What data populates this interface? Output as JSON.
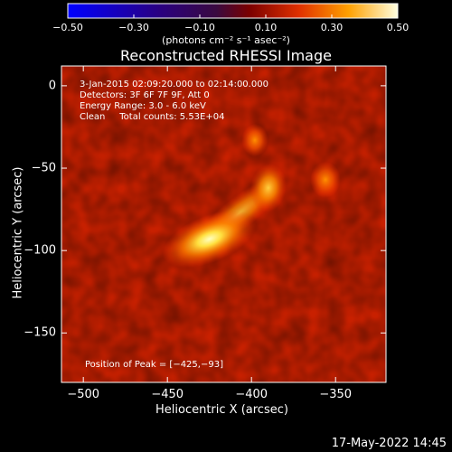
{
  "chart_data": {
    "type": "heatmap",
    "title": "Reconstructed RHESSI Image",
    "xlabel": "Heliocentric X (arcsec)",
    "ylabel": "Heliocentric Y (arcsec)",
    "xlim": [
      -513,
      -320
    ],
    "ylim": [
      -180,
      12
    ],
    "x_ticks": [
      -500,
      -450,
      -400,
      -350
    ],
    "y_ticks": [
      0,
      -50,
      -100,
      -150
    ],
    "x_tick_labels": [
      "−500",
      "−450",
      "−400",
      "−350"
    ],
    "y_tick_labels": [
      "0",
      "−50",
      "−100",
      "−150"
    ],
    "colorbar": {
      "range": [
        -0.5,
        0.5
      ],
      "ticks": [
        -0.5,
        -0.3,
        -0.1,
        0.1,
        0.3,
        0.5
      ],
      "tick_labels": [
        "−0.50",
        "−0.30",
        "−0.10",
        "0.10",
        "0.30",
        "0.50"
      ],
      "units": "(photons cm⁻² s⁻¹ asec⁻²)"
    },
    "sources": [
      {
        "x": -425,
        "y": -93,
        "peak": 1.0
      },
      {
        "x": -390,
        "y": -62,
        "peak": 0.75
      },
      {
        "x": -398,
        "y": -33,
        "peak": 0.55
      },
      {
        "x": -356,
        "y": -57,
        "peak": 0.6
      }
    ],
    "peak_position": [
      -425,
      -93
    ]
  },
  "info": {
    "line1": "3-Jan-2015 02:09:20.000 to 02:14:00.000",
    "line2": "Detectors: 3F 6F 7F 9F, Att 0",
    "line3": "Energy Range: 3.0 - 6.0 keV",
    "line4": "Clean     Total counts: 5.53E+04",
    "peak_text": "Position of Peak = [−425,−93]"
  },
  "timestamp": "17-May-2022 14:45"
}
